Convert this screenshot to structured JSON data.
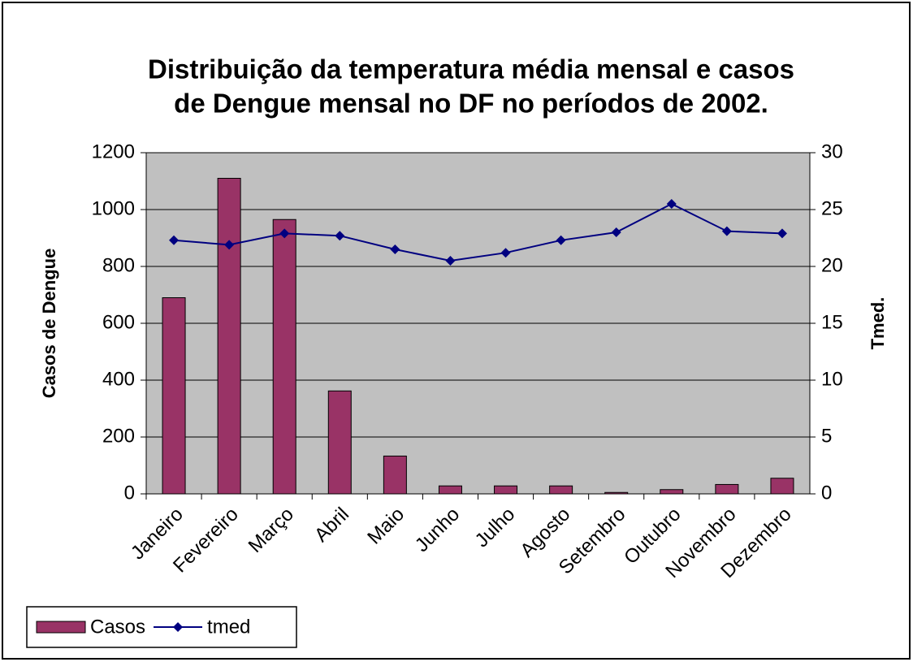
{
  "chart_data": {
    "type": "bar_line",
    "title": [
      "Distribuição da temperatura média mensal e casos",
      "de Dengue mensal no DF no períodos de 2002."
    ],
    "categories": [
      "Janeiro",
      "Fevereiro",
      "Março",
      "Abril",
      "Maio",
      "Junho",
      "Julho",
      "Agosto",
      "Setembro",
      "Outubro",
      "Novembro",
      "Dezembro"
    ],
    "series": [
      {
        "name": "Casos",
        "type": "bar",
        "color": "#993366",
        "values": [
          690,
          1110,
          965,
          362,
          133,
          28,
          28,
          28,
          5,
          15,
          33,
          55
        ]
      },
      {
        "name": "tmed",
        "type": "line",
        "axis": "y2",
        "color": "#000080",
        "values": [
          22.3,
          21.9,
          22.9,
          22.7,
          21.5,
          20.5,
          21.2,
          22.3,
          23.0,
          25.5,
          23.1,
          22.9
        ]
      }
    ],
    "ylabel": "Casos de Dengue",
    "y2label": "Tmed.",
    "ylim": [
      0,
      1200
    ],
    "yticks": [
      0,
      200,
      400,
      600,
      800,
      1000,
      1200
    ],
    "y2lim": [
      0,
      30
    ],
    "y2ticks": [
      0,
      5,
      10,
      15,
      20,
      25,
      30
    ],
    "grid": true
  }
}
